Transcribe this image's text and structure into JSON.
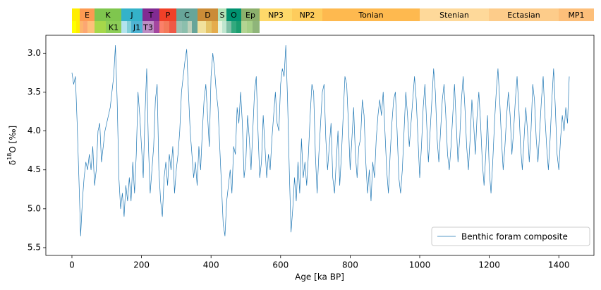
{
  "chart_data": {
    "type": "line",
    "x_label": "Age [ka BP]",
    "y_label": {
      "symbol": "δ",
      "superscript": "18",
      "text": "O [‰]"
    },
    "xlim": [
      -75,
      1501
    ],
    "ylim": [
      5.6,
      2.77
    ],
    "xticks": [
      0,
      200,
      400,
      600,
      800,
      1000,
      1200,
      1400
    ],
    "yticks": [
      {
        "value": 3,
        "label": "3.0"
      },
      3.5,
      {
        "value": 4,
        "label": "4.0"
      },
      4.5,
      {
        "value": 5,
        "label": "5.0"
      },
      5.5
    ],
    "legend": "lower right",
    "x": [
      0,
      5,
      10,
      15,
      20,
      25,
      30,
      35,
      40,
      45,
      50,
      55,
      60,
      65,
      70,
      75,
      80,
      85,
      90,
      95,
      100,
      105,
      110,
      115,
      120,
      125,
      130,
      135,
      140,
      145,
      150,
      155,
      160,
      165,
      170,
      175,
      180,
      185,
      190,
      195,
      200,
      205,
      210,
      215,
      220,
      225,
      230,
      235,
      240,
      245,
      250,
      255,
      260,
      265,
      270,
      275,
      280,
      285,
      290,
      295,
      300,
      305,
      310,
      315,
      320,
      325,
      330,
      335,
      340,
      345,
      350,
      355,
      360,
      365,
      370,
      375,
      380,
      385,
      390,
      395,
      400,
      405,
      410,
      415,
      420,
      425,
      430,
      435,
      440,
      445,
      450,
      455,
      460,
      465,
      470,
      475,
      480,
      485,
      490,
      495,
      500,
      505,
      510,
      515,
      520,
      525,
      530,
      535,
      540,
      545,
      550,
      555,
      560,
      565,
      570,
      575,
      580,
      585,
      590,
      595,
      600,
      605,
      610,
      615,
      620,
      625,
      630,
      635,
      640,
      645,
      650,
      655,
      660,
      665,
      670,
      675,
      680,
      685,
      690,
      695,
      700,
      705,
      710,
      715,
      720,
      725,
      730,
      735,
      740,
      745,
      750,
      755,
      760,
      765,
      770,
      775,
      780,
      785,
      790,
      795,
      800,
      805,
      810,
      815,
      820,
      825,
      830,
      835,
      840,
      845,
      850,
      855,
      860,
      865,
      870,
      875,
      880,
      885,
      890,
      895,
      900,
      905,
      910,
      915,
      920,
      925,
      930,
      935,
      940,
      945,
      950,
      955,
      960,
      965,
      970,
      975,
      980,
      985,
      990,
      995,
      1000,
      1005,
      1010,
      1015,
      1020,
      1025,
      1030,
      1035,
      1040,
      1045,
      1050,
      1055,
      1060,
      1065,
      1070,
      1075,
      1080,
      1085,
      1090,
      1095,
      1100,
      1105,
      1110,
      1115,
      1120,
      1125,
      1130,
      1135,
      1140,
      1145,
      1150,
      1155,
      1160,
      1165,
      1170,
      1175,
      1180,
      1185,
      1190,
      1195,
      1200,
      1205,
      1210,
      1215,
      1220,
      1225,
      1230,
      1235,
      1240,
      1245,
      1250,
      1255,
      1260,
      1265,
      1270,
      1275,
      1280,
      1285,
      1290,
      1295,
      1300,
      1305,
      1310,
      1315,
      1320,
      1325,
      1330,
      1335,
      1340,
      1345,
      1350,
      1355,
      1360,
      1365,
      1370,
      1375,
      1380,
      1385,
      1390,
      1395,
      1400,
      1405,
      1410,
      1415,
      1420,
      1425,
      1430
    ],
    "series": [
      {
        "name": "Benthic foram composite",
        "color": "#1f77b4",
        "values": [
          3.25,
          3.4,
          3.3,
          3.9,
          4.6,
          5.35,
          4.9,
          4.6,
          4.4,
          4.5,
          4.3,
          4.5,
          4.2,
          4.7,
          4.5,
          4.0,
          3.9,
          4.4,
          4.2,
          4.0,
          3.9,
          3.8,
          3.7,
          3.5,
          3.3,
          2.9,
          3.6,
          4.6,
          5.0,
          4.8,
          5.1,
          4.7,
          4.9,
          4.6,
          4.9,
          4.4,
          4.8,
          4.3,
          3.5,
          3.8,
          4.2,
          4.6,
          3.8,
          3.2,
          4.2,
          4.8,
          4.5,
          4.2,
          3.6,
          3.4,
          4.5,
          4.9,
          5.1,
          4.6,
          4.4,
          4.7,
          4.3,
          4.5,
          4.2,
          4.8,
          4.5,
          4.3,
          4.0,
          3.5,
          3.3,
          3.1,
          2.95,
          3.5,
          4.0,
          4.3,
          4.6,
          4.4,
          4.7,
          4.2,
          4.5,
          4.0,
          3.6,
          3.4,
          3.8,
          4.2,
          3.3,
          3.0,
          3.2,
          3.5,
          3.7,
          4.2,
          4.7,
          5.2,
          5.35,
          4.9,
          4.7,
          4.5,
          4.8,
          4.2,
          4.3,
          3.7,
          3.9,
          3.5,
          3.9,
          4.6,
          4.4,
          3.8,
          4.1,
          4.5,
          4.0,
          3.5,
          3.3,
          4.0,
          4.6,
          4.4,
          3.8,
          4.2,
          4.6,
          4.3,
          4.5,
          4.1,
          3.8,
          3.5,
          3.9,
          4.0,
          3.4,
          3.2,
          3.3,
          2.9,
          3.6,
          4.5,
          5.3,
          5.0,
          4.6,
          4.9,
          4.4,
          4.8,
          4.1,
          4.6,
          4.4,
          4.7,
          4.3,
          3.8,
          3.4,
          3.5,
          4.3,
          4.8,
          4.3,
          3.9,
          3.5,
          3.4,
          4.1,
          4.5,
          4.2,
          3.9,
          4.6,
          4.8,
          4.4,
          4.0,
          4.7,
          4.3,
          3.8,
          3.3,
          3.4,
          3.9,
          4.5,
          4.1,
          3.7,
          4.3,
          4.6,
          4.2,
          4.1,
          3.6,
          3.8,
          4.4,
          4.8,
          4.5,
          4.9,
          4.4,
          4.6,
          4.1,
          3.8,
          3.6,
          3.8,
          3.5,
          4.0,
          4.5,
          4.8,
          4.3,
          3.9,
          3.6,
          3.5,
          4.0,
          4.6,
          4.8,
          4.5,
          4.0,
          3.5,
          3.8,
          4.2,
          3.9,
          3.6,
          3.3,
          3.6,
          4.1,
          4.6,
          4.2,
          3.7,
          3.4,
          3.9,
          4.4,
          4.0,
          3.6,
          3.2,
          3.5,
          4.1,
          4.4,
          4.0,
          3.6,
          3.4,
          3.8,
          4.3,
          4.5,
          4.2,
          3.8,
          3.4,
          3.9,
          4.4,
          4.1,
          3.6,
          3.3,
          3.7,
          4.2,
          4.5,
          4.1,
          3.6,
          3.9,
          4.3,
          3.8,
          3.5,
          3.9,
          4.4,
          4.7,
          4.3,
          3.8,
          4.5,
          4.8,
          4.4,
          3.9,
          3.5,
          3.2,
          3.6,
          4.1,
          4.5,
          4.2,
          3.8,
          3.5,
          3.8,
          4.3,
          4.0,
          3.6,
          3.3,
          3.7,
          4.2,
          4.5,
          4.1,
          3.7,
          4.0,
          4.4,
          4.0,
          3.4,
          3.6,
          4.1,
          4.4,
          4.0,
          3.6,
          3.3,
          3.8,
          4.2,
          4.5,
          4.1,
          3.6,
          3.2,
          3.7,
          4.3,
          4.5,
          4.1,
          3.8,
          4.0,
          3.7,
          3.9,
          3.3
        ]
      }
    ],
    "timescale": {
      "row1": [
        {
          "color": "#ffed00"
        },
        {
          "label": "E",
          "color": "#fd9a52",
          "text_color": "#ffffff"
        },
        {
          "label": "K",
          "color": "#7fc64e",
          "text_color": "#ffffff"
        },
        {
          "label": "J",
          "color": "#34b2c9",
          "text_color": "#ffffff"
        },
        {
          "label": "T",
          "color": "#812b92",
          "text_color": "#ffffff"
        },
        {
          "label": "P",
          "color": "#f04028",
          "text_color": "#ffffff"
        },
        {
          "label": "C",
          "color": "#67a599",
          "text_color": "#ffffff"
        },
        {
          "label": "D",
          "color": "#cb8c37",
          "text_color": "#ffffff"
        },
        {
          "label": "S",
          "color": "#b3e1b6",
          "text_color": "#ffffff"
        },
        {
          "label": "O",
          "color": "#009270",
          "text_color": "#ffffff"
        },
        {
          "label": "Ep",
          "color": "#8cb06c",
          "text_color": "#ffffff"
        },
        {
          "label": "NP3",
          "color": "#fed96a",
          "text_color": "#ffffff"
        },
        {
          "label": "NP2",
          "color": "#fecc5c",
          "text_color": "#ffffff"
        },
        {
          "label": "Tonian",
          "color": "#feb94f",
          "text_color": "#ffffff"
        },
        {
          "label": "Stenian",
          "color": "#fed99a",
          "text_color": "#a8a8a8"
        },
        {
          "label": "Ectasian",
          "color": "#fdcc8a",
          "text_color": "#ffffff"
        },
        {
          "label": "MP1",
          "color": "#fdbf7a",
          "text_color": "#ffffff"
        }
      ],
      "row2": [
        {
          "color": "#ffff00"
        },
        {
          "color": "#ffed00"
        },
        {
          "color": "#fdb46c"
        },
        {
          "color": "#fca773"
        },
        {
          "color": "#fdc07a"
        },
        {
          "color": "#a6d84a"
        },
        {
          "label": "K1",
          "color": "#8ccd57",
          "text_color": "#ffffff"
        },
        {
          "color": "#b3e3ee"
        },
        {
          "color": "#80cfd8"
        },
        {
          "label": "J1",
          "color": "#4eb3d3",
          "text_color": "#ffffff"
        },
        {
          "label": "T3",
          "color": "#bd8cc3",
          "text_color": "#ffffff"
        },
        {
          "color": "#a4469f"
        },
        {
          "color": "#fb8069"
        },
        {
          "color": "#f37a5a"
        },
        {
          "color": "#ef5846"
        },
        {
          "color": "#99c2b5"
        },
        {
          "color": "#8cbfad"
        },
        {
          "color": "#bfd0ba"
        },
        {
          "color": "#67a599"
        },
        {
          "color": "#f1e19d"
        },
        {
          "color": "#e5c468"
        },
        {
          "color": "#e5ac4d"
        },
        {
          "color": "#e6f5e1"
        },
        {
          "color": "#bfe6cf"
        },
        {
          "color": "#7fc0a6"
        },
        {
          "color": "#33a97e"
        },
        {
          "color": "#1a9d6f"
        },
        {
          "color": "#b3d492"
        },
        {
          "color": "#a6cf86"
        },
        {
          "color": "#8fb57a"
        }
      ]
    }
  }
}
